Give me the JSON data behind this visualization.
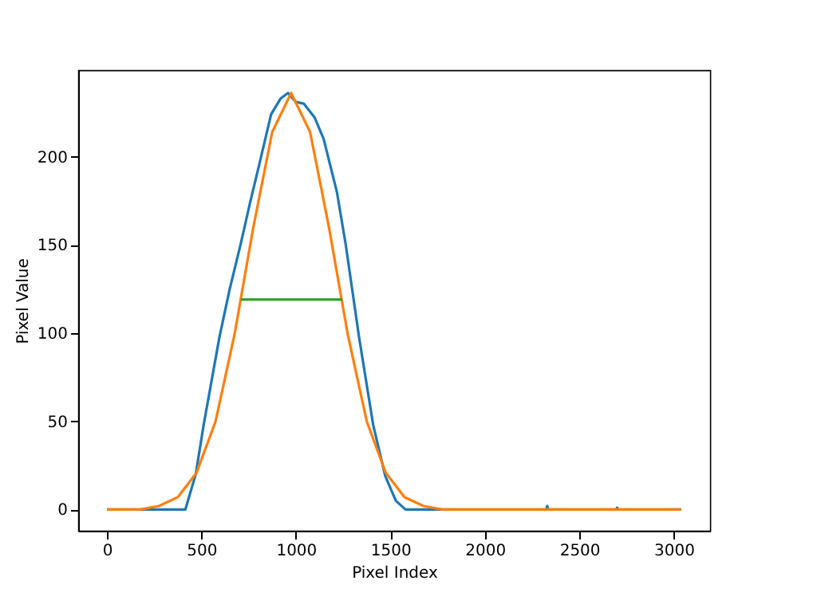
{
  "chart_data": {
    "type": "line",
    "xlabel": "Pixel Index",
    "ylabel": "Pixel Value",
    "xlim": [
      -152,
      3192
    ],
    "ylim": [
      -12,
      249
    ],
    "xticks": [
      0,
      500,
      1000,
      1500,
      2000,
      2500,
      3000
    ],
    "yticks": [
      0,
      50,
      100,
      150,
      200
    ],
    "grid": false,
    "marker": "none",
    "line_style": "solid",
    "series": [
      {
        "color": "#1f77b4",
        "x": [
          0,
          200,
          415,
          470,
          512,
          596,
          650,
          707,
          760,
          805,
          869,
          920,
          958,
          1000,
          1042,
          1100,
          1147,
          1217,
          1264,
          1334,
          1409,
          1473,
          1529,
          1580,
          2000,
          2325,
          2330,
          2335,
          2695,
          2700,
          2705,
          3040
        ],
        "values": [
          0,
          0,
          0,
          20,
          48,
          98,
          125,
          150,
          175,
          195,
          224,
          233,
          236,
          231,
          230,
          222,
          210,
          180,
          150,
          98,
          48,
          19,
          5,
          0,
          0,
          0,
          2,
          0,
          0,
          1,
          0,
          0
        ]
      },
      {
        "color": "#ff7f0e",
        "x": [
          0,
          175,
          275,
          375,
          475,
          575,
          675,
          775,
          875,
          975,
          1075,
          1175,
          1275,
          1375,
          1475,
          1575,
          1675,
          1775,
          1875,
          3040
        ],
        "values": [
          0,
          0,
          2,
          7,
          21,
          50,
          99,
          160,
          214,
          236,
          214,
          160,
          99,
          50,
          21,
          7,
          2,
          0,
          0,
          0
        ]
      },
      {
        "color": "#2ca02c",
        "x": [
          710,
          1245
        ],
        "values": [
          119,
          119
        ]
      }
    ]
  }
}
